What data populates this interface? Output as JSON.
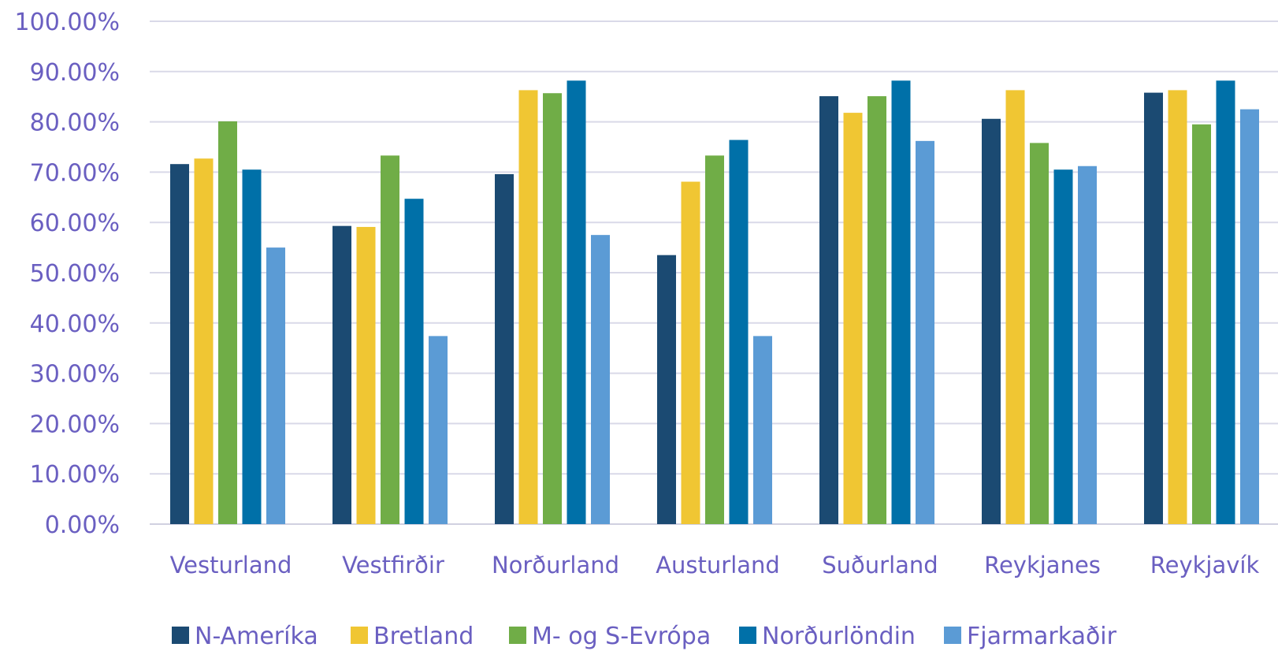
{
  "chart_data": {
    "type": "bar",
    "title": "",
    "xlabel": "",
    "ylabel": "",
    "ylim": [
      0,
      100
    ],
    "y_ticks": [
      "0.00%",
      "10.00%",
      "20.00%",
      "30.00%",
      "40.00%",
      "50.00%",
      "60.00%",
      "70.00%",
      "80.00%",
      "90.00%",
      "100.00%"
    ],
    "grid": true,
    "legend_position": "bottom",
    "categories": [
      "Vesturland",
      "Vestfirðir",
      "Norðurland",
      "Austurland",
      "Suðurland",
      "Reykjanes",
      "Reykjavík"
    ],
    "series": [
      {
        "name": "N-Ameríka",
        "color": "#1b4a72",
        "values": [
          71.6,
          59.3,
          69.6,
          53.5,
          85.1,
          80.6,
          85.8
        ]
      },
      {
        "name": "Bretland",
        "color": "#f0c633",
        "values": [
          72.7,
          59.1,
          86.3,
          68.1,
          81.8,
          86.3,
          86.3
        ]
      },
      {
        "name": "M- og S-Evrópa",
        "color": "#70ad47",
        "values": [
          80.1,
          73.3,
          85.7,
          73.3,
          85.1,
          75.8,
          79.5
        ]
      },
      {
        "name": "Norðurlöndin",
        "color": "#0070a8",
        "values": [
          70.5,
          64.7,
          88.2,
          76.4,
          88.2,
          70.5,
          88.2
        ]
      },
      {
        "name": "Fjarmarkaðir",
        "color": "#5b9bd5",
        "values": [
          55.0,
          37.4,
          57.5,
          37.4,
          76.2,
          71.2,
          82.5
        ]
      }
    ]
  }
}
